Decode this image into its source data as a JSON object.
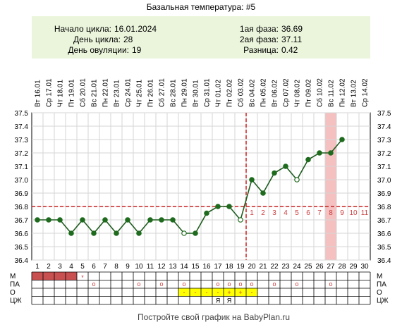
{
  "title": "Базальная температура: #5",
  "info": {
    "cycle_start_label": "Начало цикла:",
    "cycle_start": "16.01.2024",
    "cycle_day_label": "День цикла:",
    "cycle_day": "28",
    "ovulation_day_label": "День овуляции:",
    "ovulation_day": "19",
    "phase1_label": "1ая фаза:",
    "phase1": "36.69",
    "phase2_label": "2ая фаза:",
    "phase2": "37.11",
    "diff_label": "Разница:",
    "diff": "0.42"
  },
  "colors": {
    "line": "#1e5c1e",
    "point": "#1e6b1e",
    "coverline": "#cc2020",
    "highlight": "#f4c0c0",
    "info_bg": "#ebf5dc",
    "period": "#c85050",
    "lh": "#ffff00"
  },
  "row_labels": [
    "М",
    "ПА",
    "О",
    "ЦЖ"
  ],
  "footer": "Постройте свой график на BabyPlan.ru",
  "chart_data": {
    "type": "line",
    "dates": [
      "16.01",
      "17.01",
      "18.01",
      "19.01",
      "20.01",
      "21.01",
      "22.01",
      "23.01",
      "24.01",
      "25.01",
      "26.01",
      "27.01",
      "28.01",
      "29.01",
      "30.01",
      "31.01",
      "01.02",
      "02.02",
      "03.02",
      "04.02",
      "05.02",
      "06.02",
      "07.02",
      "08.02",
      "09.02",
      "10.02",
      "11.02",
      "12.02",
      "13.02",
      "14.02"
    ],
    "weekdays": [
      "Вт",
      "Ср",
      "Чт",
      "Пт",
      "Сб",
      "Вс",
      "Пн",
      "Вт",
      "Ср",
      "Чт",
      "Пт",
      "Сб",
      "Вс",
      "Пн",
      "Вт",
      "Ср",
      "Чт",
      "Пт",
      "Сб",
      "Вс",
      "Пн",
      "Вт",
      "Ср",
      "Чт",
      "Пт",
      "Сб",
      "Вс",
      "Пн",
      "Вт",
      "Ср"
    ],
    "days": [
      1,
      2,
      3,
      4,
      5,
      6,
      7,
      8,
      9,
      10,
      11,
      12,
      13,
      14,
      15,
      16,
      17,
      18,
      19,
      20,
      21,
      22,
      23,
      24,
      25,
      26,
      27,
      28,
      29,
      30
    ],
    "temperatures": [
      36.7,
      36.7,
      36.7,
      36.6,
      36.7,
      36.6,
      36.7,
      36.6,
      36.7,
      36.6,
      36.7,
      36.7,
      36.7,
      36.6,
      36.6,
      36.75,
      36.8,
      36.8,
      36.7,
      37.0,
      36.9,
      37.05,
      37.1,
      37.0,
      37.15,
      37.2,
      37.2,
      37.3
    ],
    "hollow_days": [
      14,
      19,
      24
    ],
    "y_ticks": [
      "36.4",
      "36.5",
      "36.6",
      "36.7",
      "36.8",
      "36.9",
      "37.0",
      "37.1",
      "37.2",
      "37.3",
      "37.4",
      "37.5"
    ],
    "ylim": [
      36.4,
      37.5
    ],
    "coverline": 36.8,
    "ovulation_day": 19,
    "highlight_day": 27,
    "luteal_labels": [
      "1",
      "2",
      "3",
      "4",
      "5",
      "6",
      "7",
      "8",
      "9",
      "10",
      "11"
    ],
    "period_days": [
      1,
      2,
      3,
      4
    ],
    "period_mark": {
      "day": 5,
      "symbol": "*"
    },
    "pa_days": [
      6,
      10,
      12,
      14,
      17,
      18,
      19,
      20,
      22,
      24,
      27
    ],
    "pa_symbol": "o",
    "ovulation_test": [
      {
        "day": 14,
        "symbol": "-"
      },
      {
        "day": 15,
        "symbol": "-"
      },
      {
        "day": 16,
        "symbol": "-"
      },
      {
        "day": 17,
        "symbol": "-"
      },
      {
        "day": 18,
        "symbol": "+"
      },
      {
        "day": 19,
        "symbol": "+"
      },
      {
        "day": 20,
        "symbol": "-"
      }
    ],
    "cm_marks": [
      {
        "day": 17,
        "symbol": "Я"
      },
      {
        "day": 18,
        "symbol": "Я"
      }
    ]
  }
}
